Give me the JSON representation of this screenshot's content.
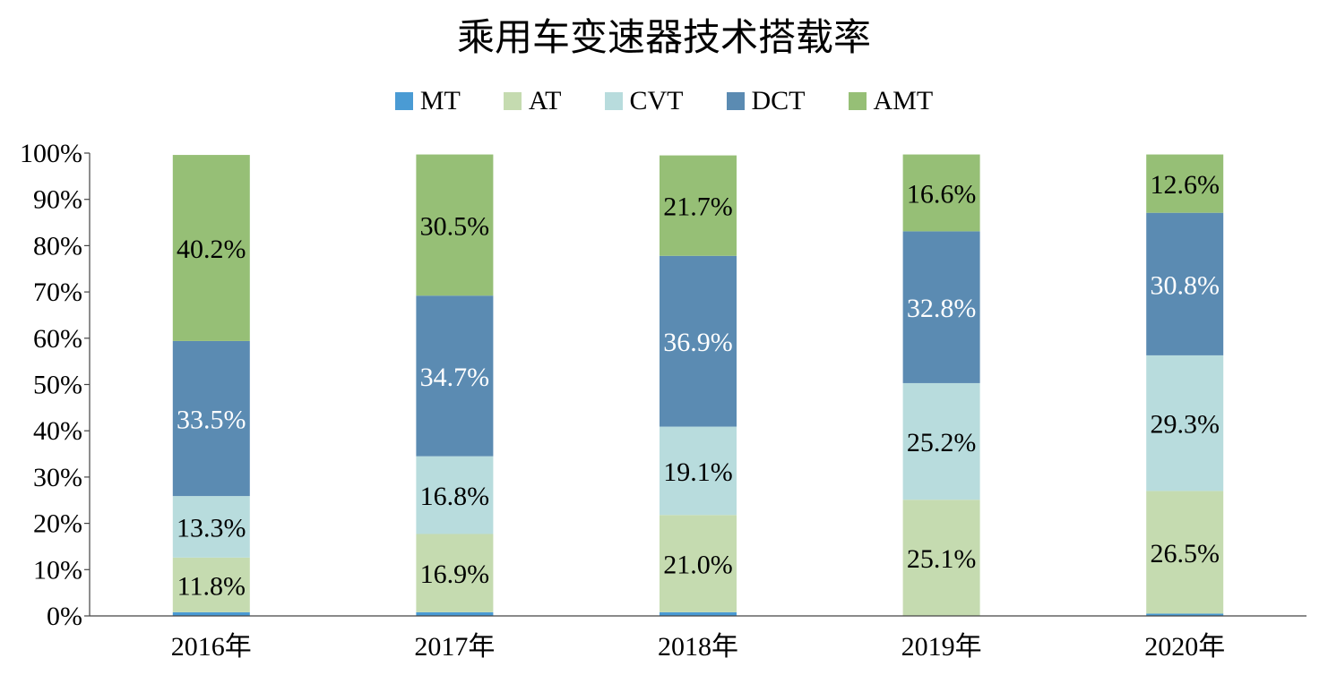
{
  "chart_data": {
    "type": "bar",
    "stacked": true,
    "title": "乘用车变速器技术搭载率",
    "categories": [
      "2016年",
      "2017年",
      "2018年",
      "2019年",
      "2020年"
    ],
    "ylim": [
      0,
      100
    ],
    "yticks": [
      "0%",
      "10%",
      "20%",
      "30%",
      "40%",
      "50%",
      "60%",
      "70%",
      "80%",
      "90%",
      "100%"
    ],
    "legend_position": "top",
    "series": [
      {
        "name": "MT",
        "color": "#4A9BD4",
        "values": [
          0.8,
          0.8,
          0.8,
          0.0,
          0.5
        ],
        "labels": [
          "",
          "",
          "",
          "",
          ""
        ]
      },
      {
        "name": "AT",
        "color": "#C5DBB0",
        "values": [
          11.8,
          16.9,
          21.0,
          25.1,
          26.5
        ],
        "labels": [
          "11.8%",
          "16.9%",
          "21.0%",
          "25.1%",
          "26.5%"
        ]
      },
      {
        "name": "CVT",
        "color": "#B8DCDD",
        "values": [
          13.3,
          16.8,
          19.1,
          25.2,
          29.3
        ],
        "labels": [
          "13.3%",
          "16.8%",
          "19.1%",
          "25.2%",
          "29.3%"
        ]
      },
      {
        "name": "DCT",
        "color": "#5B8BB2",
        "values": [
          33.5,
          34.7,
          36.9,
          32.8,
          30.8
        ],
        "labels": [
          "33.5%",
          "34.7%",
          "36.9%",
          "32.8%",
          "30.8%"
        ]
      },
      {
        "name": "AMT",
        "color": "#96BF76",
        "values": [
          40.2,
          30.5,
          21.7,
          16.6,
          12.6
        ],
        "labels": [
          "40.2%",
          "30.5%",
          "21.7%",
          "16.6%",
          "12.6%"
        ]
      }
    ]
  }
}
